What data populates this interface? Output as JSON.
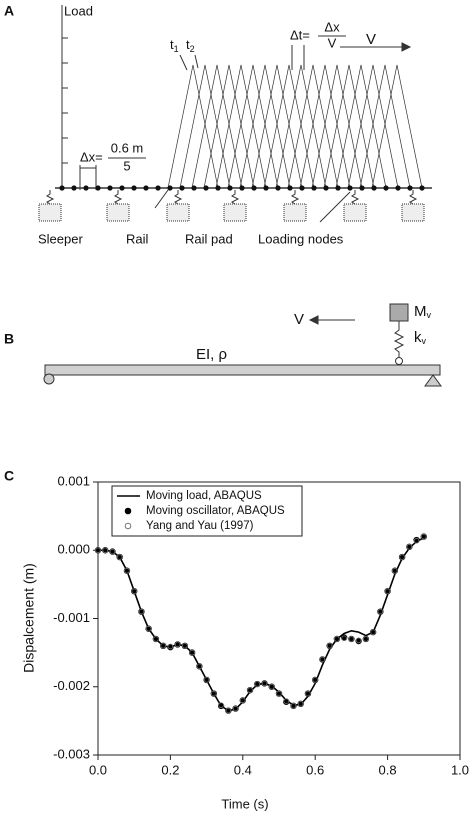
{
  "panel_a": {
    "letter": "A",
    "axis_label": "Load",
    "t1": {
      "text": "t",
      "sub": "1"
    },
    "t2": {
      "text": "t",
      "sub": "2"
    },
    "dt": "Δt=",
    "dt_num": "Δx",
    "dt_den": "V",
    "speed": "V",
    "dx": "Δx=",
    "dx_num": "0.6 m",
    "dx_den": "5",
    "sleeper": "Sleeper",
    "rail": "Rail",
    "rail_pad": "Rail pad",
    "loading_nodes": "Loading nodes"
  },
  "panel_b": {
    "letter": "B",
    "speed": "V",
    "mass": {
      "text": "M",
      "sub": "v"
    },
    "spring": {
      "text": "k",
      "sub": "v"
    },
    "beam": "EI, ρ"
  },
  "chart_data": {
    "type": "line",
    "letter": "C",
    "x_label": "Time (s)",
    "y_label": "Dispalcement (m)",
    "xlim": [
      0,
      1.0
    ],
    "ylim": [
      -0.003,
      0.001
    ],
    "xticks": [
      {
        "value": 0,
        "label": "0.0"
      },
      0.2,
      0.4,
      0.6,
      0.8,
      {
        "value": 1,
        "label": "1.0"
      }
    ],
    "yticks": [
      -0.003,
      -0.002,
      -0.001,
      {
        "value": 0,
        "label": "0.000"
      },
      0.001
    ],
    "legend": "upper left",
    "x": [
      0,
      0.02,
      0.04,
      0.06,
      0.08,
      0.1,
      0.12,
      0.14,
      0.16,
      0.18,
      0.2,
      0.22,
      0.24,
      0.26,
      0.28,
      0.3,
      0.32,
      0.34,
      0.36,
      0.38,
      0.4,
      0.42,
      0.44,
      0.46,
      0.48,
      0.5,
      0.52,
      0.54,
      0.56,
      0.58,
      0.6,
      0.62,
      0.64,
      0.66,
      0.68,
      0.7,
      0.72,
      0.74,
      0.76,
      0.78,
      0.8,
      0.82,
      0.84,
      0.86,
      0.88,
      0.9
    ],
    "series": [
      {
        "name": "Moving load, ABAQUS",
        "color": "#000000",
        "style": "line",
        "values": [
          0,
          0,
          -2e-05,
          -0.0001,
          -0.0003,
          -0.0006,
          -0.0009,
          -0.00115,
          -0.0013,
          -0.0014,
          -0.00142,
          -0.00138,
          -0.0014,
          -0.0015,
          -0.0017,
          -0.0019,
          -0.0021,
          -0.00228,
          -0.00235,
          -0.00233,
          -0.00222,
          -0.00207,
          -0.00197,
          -0.00195,
          -0.00199,
          -0.00208,
          -0.0022,
          -0.00227,
          -0.00226,
          -0.00214,
          -0.00195,
          -0.00168,
          -0.00145,
          -0.0013,
          -0.00122,
          -0.00118,
          -0.0012,
          -0.00125,
          -0.0012,
          -0.00095,
          -0.00065,
          -0.00035,
          -0.00012,
          3e-05,
          0.00013,
          0.00018
        ]
      },
      {
        "name": "Moving oscillator, ABAQUS",
        "color": "#000000",
        "style": "filled-dots",
        "values": [
          0,
          0,
          -2e-05,
          -0.0001,
          -0.0003,
          -0.0006,
          -0.0009,
          -0.00115,
          -0.0013,
          -0.0014,
          -0.00142,
          -0.00138,
          -0.0014,
          -0.0015,
          -0.0017,
          -0.0019,
          -0.0021,
          -0.00228,
          -0.00235,
          -0.00232,
          -0.0022,
          -0.00205,
          -0.00196,
          -0.00195,
          -0.002,
          -0.0021,
          -0.00222,
          -0.00228,
          -0.00225,
          -0.0021,
          -0.0019,
          -0.0016,
          -0.0014,
          -0.0013,
          -0.00128,
          -0.0013,
          -0.00133,
          -0.0013,
          -0.0012,
          -0.0009,
          -0.0006,
          -0.0003,
          -0.0001,
          5e-05,
          0.00015,
          0.0002
        ]
      },
      {
        "name": "Yang and Yau (1997)",
        "color": "#777777",
        "style": "open-circles",
        "values": [
          0,
          0,
          -2e-05,
          -0.0001,
          -0.0003,
          -0.0006,
          -0.0009,
          -0.00115,
          -0.0013,
          -0.0014,
          -0.00141,
          -0.00138,
          -0.0014,
          -0.0015,
          -0.0017,
          -0.0019,
          -0.0021,
          -0.00227,
          -0.00235,
          -0.00232,
          -0.0022,
          -0.00205,
          -0.00196,
          -0.00195,
          -0.002,
          -0.0021,
          -0.00221,
          -0.00228,
          -0.00225,
          -0.0021,
          -0.0019,
          -0.0016,
          -0.0014,
          -0.0013,
          -0.00129,
          -0.0013,
          -0.00132,
          -0.0013,
          -0.0012,
          -0.0009,
          -0.0006,
          -0.0003,
          -0.0001,
          5e-05,
          0.00014,
          0.0002
        ]
      }
    ]
  }
}
